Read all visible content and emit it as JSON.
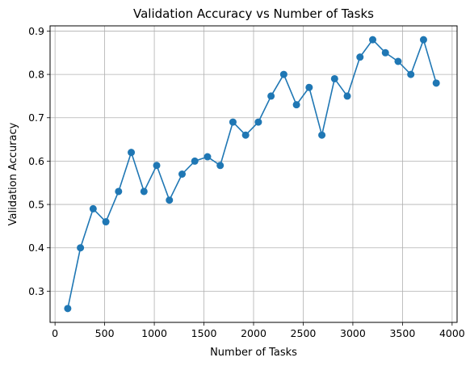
{
  "chart_data": {
    "type": "line",
    "title": "Validation Accuracy vs Number of Tasks",
    "xlabel": "Number of Tasks",
    "ylabel": "Validation Accuracy",
    "xlim": [
      -50,
      4050
    ],
    "ylim": [
      0.228,
      0.912
    ],
    "xticks": [
      0,
      500,
      1000,
      1500,
      2000,
      2500,
      3000,
      3500,
      4000
    ],
    "xtick_labels": [
      "0",
      "500",
      "1000",
      "1500",
      "2000",
      "2500",
      "3000",
      "3500",
      "4000"
    ],
    "yticks": [
      0.3,
      0.4,
      0.5,
      0.6,
      0.7,
      0.8,
      0.9
    ],
    "ytick_labels": [
      "0.3",
      "0.4",
      "0.5",
      "0.6",
      "0.7",
      "0.8",
      "0.9"
    ],
    "grid": true,
    "series": [
      {
        "color": "#1f77b4",
        "marker": "circle",
        "x": [
          128,
          256,
          384,
          512,
          640,
          768,
          896,
          1024,
          1152,
          1280,
          1408,
          1536,
          1664,
          1792,
          1920,
          2048,
          2176,
          2304,
          2432,
          2560,
          2688,
          2816,
          2944,
          3072,
          3200,
          3328,
          3456,
          3584,
          3712,
          3840
        ],
        "y": [
          0.26,
          0.4,
          0.49,
          0.46,
          0.53,
          0.62,
          0.53,
          0.59,
          0.51,
          0.57,
          0.6,
          0.61,
          0.59,
          0.69,
          0.66,
          0.69,
          0.75,
          0.8,
          0.73,
          0.77,
          0.66,
          0.79,
          0.75,
          0.84,
          0.88,
          0.85,
          0.83,
          0.8,
          0.88,
          0.78
        ]
      }
    ]
  }
}
